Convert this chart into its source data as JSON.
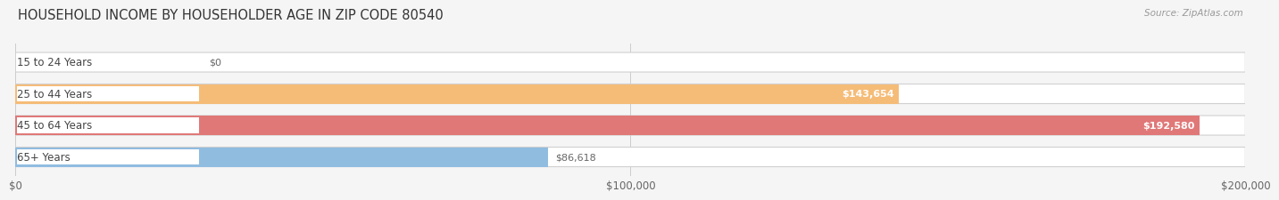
{
  "title": "HOUSEHOLD INCOME BY HOUSEHOLDER AGE IN ZIP CODE 80540",
  "source": "Source: ZipAtlas.com",
  "categories": [
    "15 to 24 Years",
    "25 to 44 Years",
    "45 to 64 Years",
    "65+ Years"
  ],
  "values": [
    0,
    143654,
    192580,
    86618
  ],
  "bar_colors": [
    "#f5a8bc",
    "#f5bc78",
    "#e07878",
    "#90bce0"
  ],
  "label_dot_colors": [
    "#e07890",
    "#e09040",
    "#c85050",
    "#4878b8"
  ],
  "background_color": "#f5f5f5",
  "xlim": [
    0,
    200000
  ],
  "xtick_labels": [
    "$0",
    "$100,000",
    "$200,000"
  ],
  "value_labels": [
    "$0",
    "$143,654",
    "$192,580",
    "$86,618"
  ],
  "fig_width": 14.06,
  "fig_height": 2.33,
  "title_fontsize": 10.5,
  "label_fontsize": 8.5,
  "value_fontsize": 8,
  "source_fontsize": 7.5
}
